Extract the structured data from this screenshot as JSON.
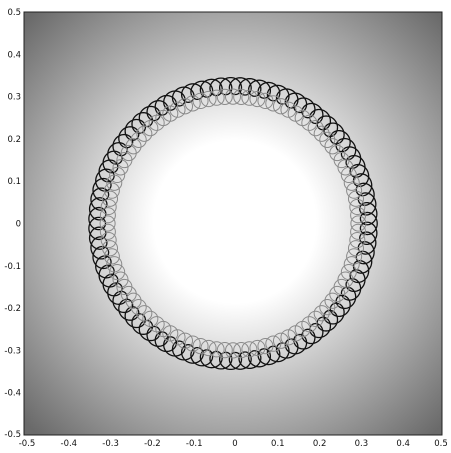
{
  "chart_data": {
    "type": "scatter",
    "title": "",
    "xlabel": "",
    "ylabel": "",
    "xlim": [
      -0.5,
      0.5
    ],
    "ylim": [
      -0.5,
      0.5
    ],
    "grid": false,
    "x_ticks": [
      "-0.5",
      "-0.4",
      "-0.3",
      "-0.2",
      "-0.1",
      "0",
      "0.1",
      "0.2",
      "0.3",
      "0.4",
      "0.5"
    ],
    "y_ticks": [
      "0.5",
      "0.4",
      "0.3",
      "0.2",
      "0.1",
      "0",
      "-0.1",
      "-0.2",
      "-0.3",
      "-0.4",
      "-0.5"
    ],
    "background": {
      "kind": "radial-gradient",
      "center": [
        0,
        0
      ],
      "center_color": "#ffffff",
      "edge_color": "#6a6a6a"
    },
    "ring": {
      "center": [
        0,
        0
      ],
      "radius": 0.325,
      "loop_radius": 0.02,
      "loop_count": 88,
      "line_color": "#111111",
      "marker_color": "#8a8a8a"
    },
    "markers": {
      "shape": "open-circle",
      "color": "#8a8a8a",
      "radius": 0.018,
      "ring_radius": 0.3,
      "count": 96
    }
  }
}
